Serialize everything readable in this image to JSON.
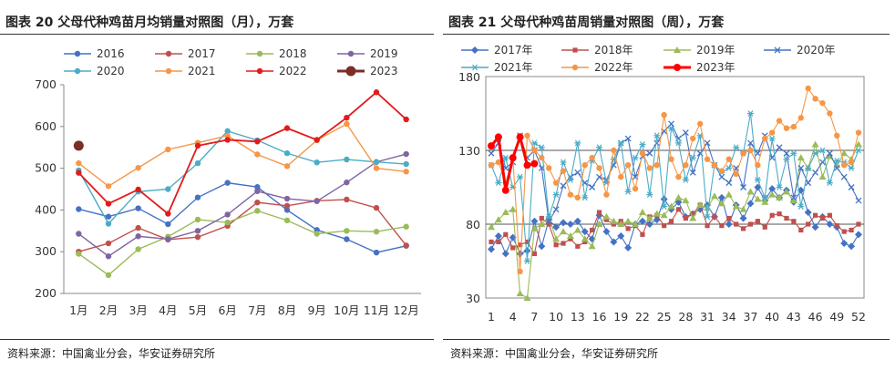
{
  "left": {
    "title": "图表 20 父母代种鸡苗月均销量对照图（月），万套",
    "source": "资料来源：中国禽业分会，华安证券研究所"
  },
  "right": {
    "title": "图表 21 父母代种鸡苗周销量对照图（周），万套",
    "source": "资料来源：中国禽业分会，华安证券研究所"
  },
  "chart_data": [
    {
      "type": "line",
      "title": "图表 20 父母代种鸡苗月均销量对照图（月），万套",
      "categories": [
        "1月",
        "2月",
        "3月",
        "4月",
        "5月",
        "6月",
        "7月",
        "8月",
        "9月",
        "10月",
        "11月",
        "12月"
      ],
      "ylim": [
        200,
        700
      ],
      "yticks": [
        200,
        300,
        400,
        500,
        600,
        700
      ],
      "grid": false,
      "legend": "top",
      "series": [
        {
          "name": "2016",
          "color": "#4472C4",
          "marker": "circle",
          "values": [
            402,
            384,
            404,
            366,
            430,
            465,
            455,
            400,
            352,
            330,
            298,
            314
          ]
        },
        {
          "name": "2017",
          "color": "#C0504D",
          "marker": "circle",
          "values": [
            300,
            320,
            357,
            329,
            335,
            362,
            418,
            410,
            422,
            425,
            405,
            315
          ]
        },
        {
          "name": "2018",
          "color": "#9BBB59",
          "marker": "circle",
          "values": [
            295,
            244,
            306,
            336,
            377,
            370,
            398,
            375,
            343,
            350,
            348,
            360
          ]
        },
        {
          "name": "2019",
          "color": "#8064A2",
          "marker": "circle",
          "values": [
            343,
            289,
            337,
            330,
            350,
            389,
            445,
            427,
            421,
            466,
            515,
            534
          ]
        },
        {
          "name": "2020",
          "color": "#4BACC6",
          "marker": "circle",
          "values": [
            495,
            367,
            444,
            450,
            512,
            589,
            567,
            536,
            514,
            521,
            515,
            510
          ]
        },
        {
          "name": "2021",
          "color": "#F79646",
          "marker": "circle",
          "values": [
            512,
            457,
            501,
            545,
            561,
            578,
            533,
            505,
            567,
            606,
            500,
            492
          ]
        },
        {
          "name": "2022",
          "color": "#E31A1C",
          "marker": "circle",
          "values": [
            489,
            415,
            449,
            391,
            554,
            568,
            564,
            596,
            568,
            621,
            682,
            617
          ]
        },
        {
          "name": "2023",
          "color": "#7B2D26",
          "marker": "circle-large",
          "values": [
            554,
            null,
            null,
            null,
            null,
            null,
            null,
            null,
            null,
            null,
            null,
            null
          ]
        }
      ]
    },
    {
      "type": "line",
      "title": "图表 21 父母代种鸡苗周销量对照图（周），万套",
      "x_tick_labels": [
        "1",
        "4",
        "7",
        "10",
        "13",
        "16",
        "19",
        "22",
        "25",
        "28",
        "31",
        "34",
        "37",
        "40",
        "43",
        "46",
        "49",
        "52"
      ],
      "weeks": 52,
      "ylim": [
        30,
        180
      ],
      "yticks": [
        30,
        80,
        130,
        180
      ],
      "reference_lines": [
        80,
        130
      ],
      "legend": "top",
      "series": [
        {
          "name": "2017年",
          "color": "#4472C4",
          "marker": "diamond",
          "values": [
            63,
            72,
            60,
            71,
            60,
            62,
            82,
            65,
            83,
            78,
            81,
            80,
            82,
            75,
            70,
            86,
            75,
            68,
            72,
            64,
            80,
            82,
            80,
            83,
            97,
            90,
            95,
            85,
            87,
            90,
            93,
            85,
            98,
            80,
            93,
            84,
            94,
            105,
            96,
            104,
            98,
            103,
            95,
            103,
            88,
            78,
            85,
            80,
            78,
            67,
            65,
            73
          ]
        },
        {
          "name": "2018年",
          "color": "#C0504D",
          "marker": "square",
          "values": [
            68,
            68,
            73,
            64,
            66,
            68,
            60,
            84,
            80,
            66,
            67,
            70,
            65,
            68,
            76,
            88,
            83,
            80,
            82,
            77,
            79,
            73,
            85,
            86,
            79,
            82,
            90,
            84,
            87,
            93,
            79,
            85,
            79,
            84,
            80,
            77,
            80,
            82,
            78,
            86,
            87,
            84,
            82,
            76,
            80,
            86,
            84,
            86,
            79,
            75,
            76,
            80
          ]
        },
        {
          "name": "2019年",
          "color": "#9BBB59",
          "marker": "triangle",
          "values": [
            78,
            83,
            88,
            90,
            33,
            30,
            77,
            80,
            85,
            70,
            75,
            72,
            76,
            70,
            65,
            80,
            85,
            82,
            80,
            82,
            80,
            88,
            84,
            87,
            86,
            92,
            98,
            96,
            84,
            93,
            91,
            99,
            94,
            100,
            92,
            90,
            102,
            97,
            95,
            100,
            98,
            102,
            96,
            125,
            118,
            134,
            112,
            126,
            120,
            128,
            124,
            134
          ]
        },
        {
          "name": "2020年",
          "color": "#4472C4",
          "marker": "x",
          "values": [
            128,
            135,
            118,
            122,
            140,
            125,
            130,
            118,
            82,
            90,
            106,
            112,
            115,
            108,
            105,
            112,
            110,
            120,
            135,
            138,
            112,
            126,
            128,
            135,
            143,
            148,
            138,
            142,
            115,
            128,
            135,
            120,
            112,
            108,
            118,
            105,
            135,
            128,
            140,
            125,
            132,
            128,
            98,
            118,
            108,
            115,
            122,
            128,
            118,
            112,
            105,
            96
          ]
        },
        {
          "name": "2021年",
          "color": "#4BACC6",
          "marker": "asterisk",
          "values": [
            120,
            108,
            125,
            105,
            112,
            55,
            135,
            132,
            85,
            100,
            122,
            110,
            135,
            98,
            123,
            132,
            108,
            124,
            135,
            102,
            125,
            134,
            100,
            140,
            92,
            145,
            135,
            110,
            125,
            140,
            85,
            120,
            115,
            118,
            132,
            128,
            155,
            110,
            98,
            138,
            105,
            124,
            128,
            92,
            118,
            128,
            130,
            108,
            123,
            122,
            118,
            130
          ]
        },
        {
          "name": "2022年",
          "color": "#F79646",
          "marker": "circle",
          "values": [
            120,
            122,
            108,
            125,
            48,
            140,
            130,
            125,
            118,
            108,
            116,
            100,
            98,
            120,
            125,
            118,
            100,
            130,
            112,
            120,
            104,
            128,
            118,
            120,
            154,
            124,
            112,
            120,
            138,
            148,
            124,
            120,
            116,
            124,
            114,
            128,
            130,
            120,
            138,
            142,
            150,
            145,
            146,
            152,
            172,
            165,
            162,
            155,
            140,
            120,
            122,
            142
          ]
        },
        {
          "name": "2023年",
          "color": "#FF0000",
          "marker": "circle-bold",
          "values": [
            133,
            139,
            103,
            125,
            139,
            120,
            121
          ]
        }
      ]
    }
  ]
}
